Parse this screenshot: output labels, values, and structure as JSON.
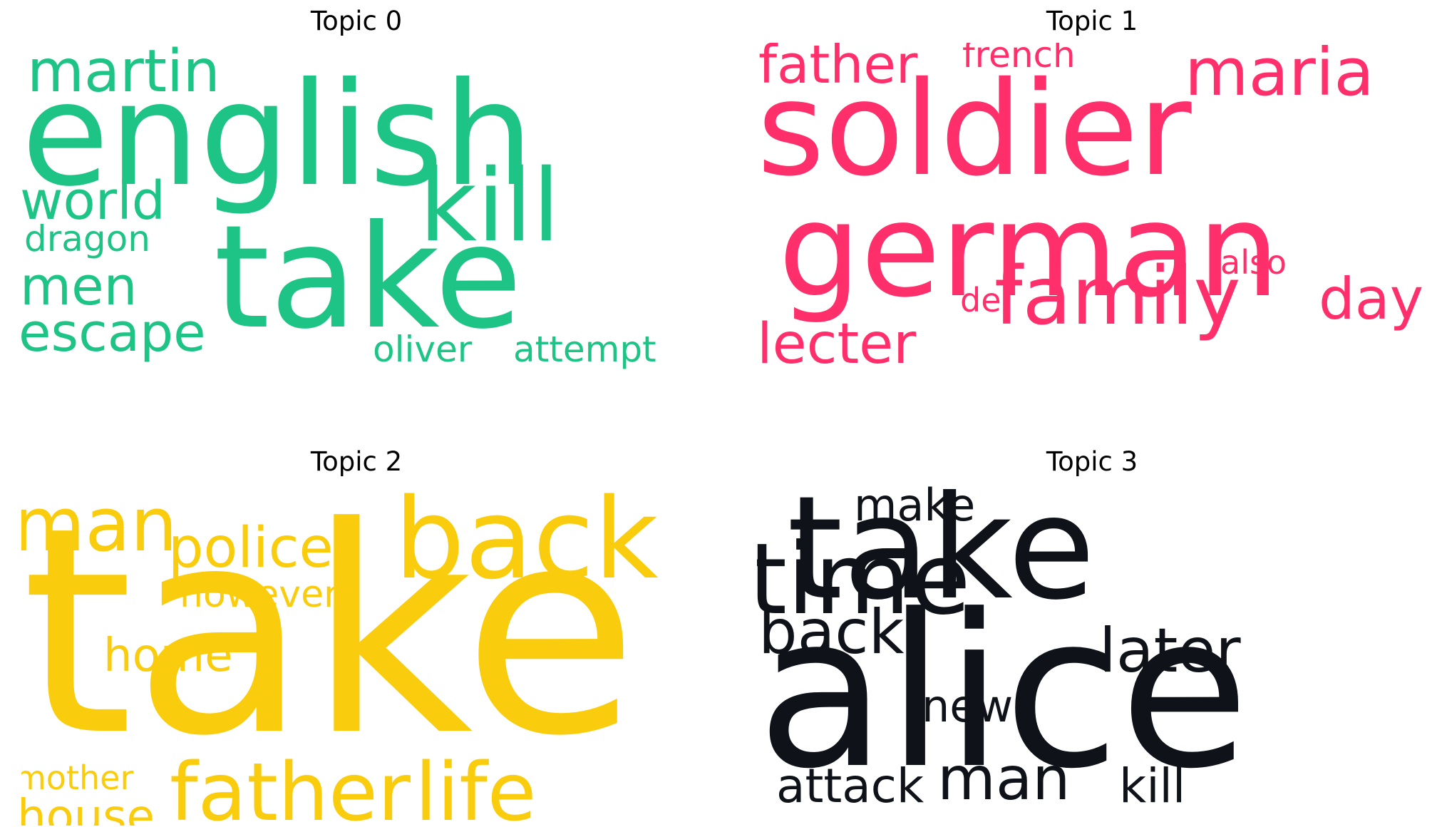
{
  "chart_data": [
    {
      "type": "wordcloud",
      "title": "Topic 0",
      "color": "#1ec486",
      "words": [
        "english",
        "take",
        "kill",
        "martin",
        "world",
        "dragon",
        "men",
        "escape",
        "oliver",
        "attempt"
      ]
    },
    {
      "type": "wordcloud",
      "title": "Topic 1",
      "color": "#fe2f6a",
      "words": [
        "soldier",
        "german",
        "father",
        "french",
        "maria",
        "family",
        "lecter",
        "day",
        "de",
        "also"
      ]
    },
    {
      "type": "wordcloud",
      "title": "Topic 2",
      "color": "#f9cc0e",
      "words": [
        "take",
        "back",
        "man",
        "police",
        "however",
        "home",
        "father",
        "life",
        "mother",
        "house"
      ]
    },
    {
      "type": "wordcloud",
      "title": "Topic 3",
      "color": "#0f1219",
      "words": [
        "alice",
        "take",
        "time",
        "make",
        "back",
        "later",
        "new",
        "man",
        "attack",
        "kill"
      ]
    }
  ]
}
